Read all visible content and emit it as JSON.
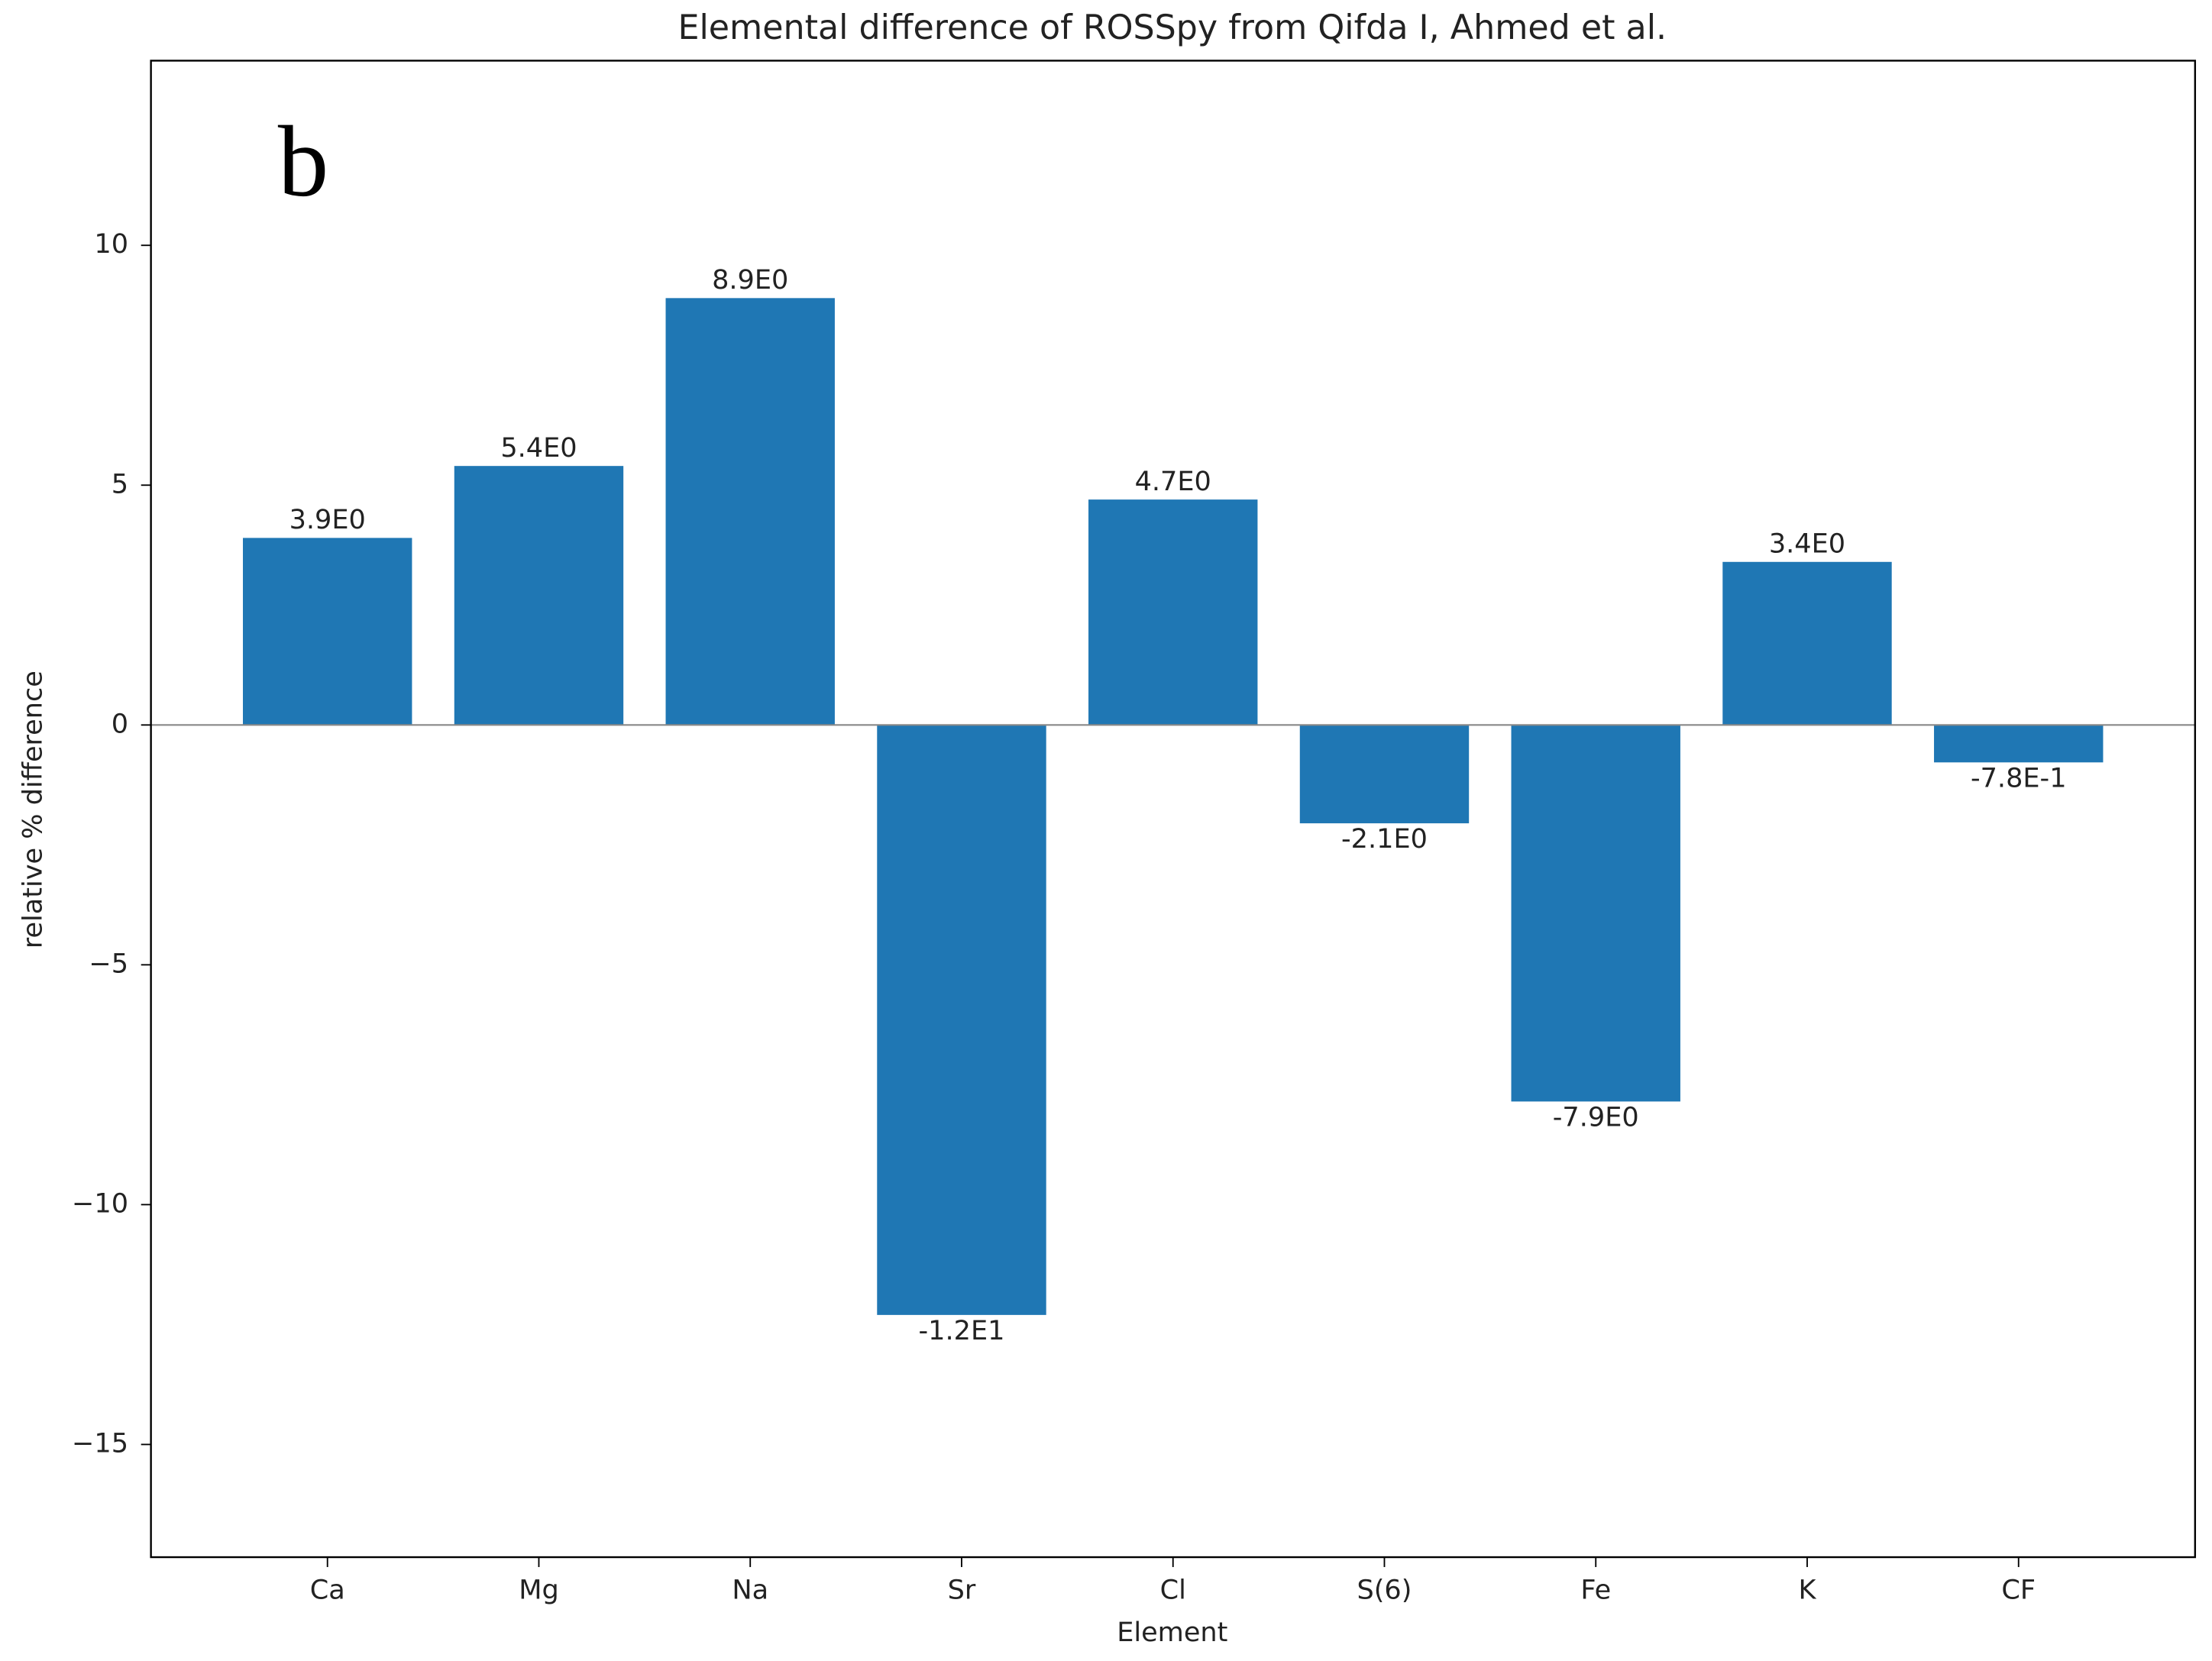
{
  "chart_data": {
    "type": "bar",
    "title": "Elemental difference of ROSSpy from Qifda I, Ahmed et al.",
    "annotation": "b",
    "x_label": "Element",
    "y_label": "relative % difference",
    "categories": [
      "Ca",
      "Mg",
      "Na",
      "Sr",
      "Cl",
      "S(6)",
      "Fe",
      "K",
      "CF"
    ],
    "values": [
      3.9,
      5.4,
      8.9,
      -12.3,
      4.7,
      -2.05,
      -7.85,
      3.4,
      -0.78
    ],
    "value_labels": [
      "3.9E0",
      "5.4E0",
      "8.9E0",
      "-1.2E1",
      "4.7E0",
      "-2.1E0",
      "-7.9E0",
      "3.4E0",
      "-7.8E-1"
    ],
    "color": "#1f77b4",
    "ylim": [
      -17.35,
      13.85
    ],
    "yticks": [
      10,
      5,
      0,
      {
        "value": -5,
        "label": "−5"
      },
      {
        "value": -10,
        "label": "−10"
      },
      {
        "value": -15,
        "label": "−15"
      }
    ],
    "grid": false
  }
}
